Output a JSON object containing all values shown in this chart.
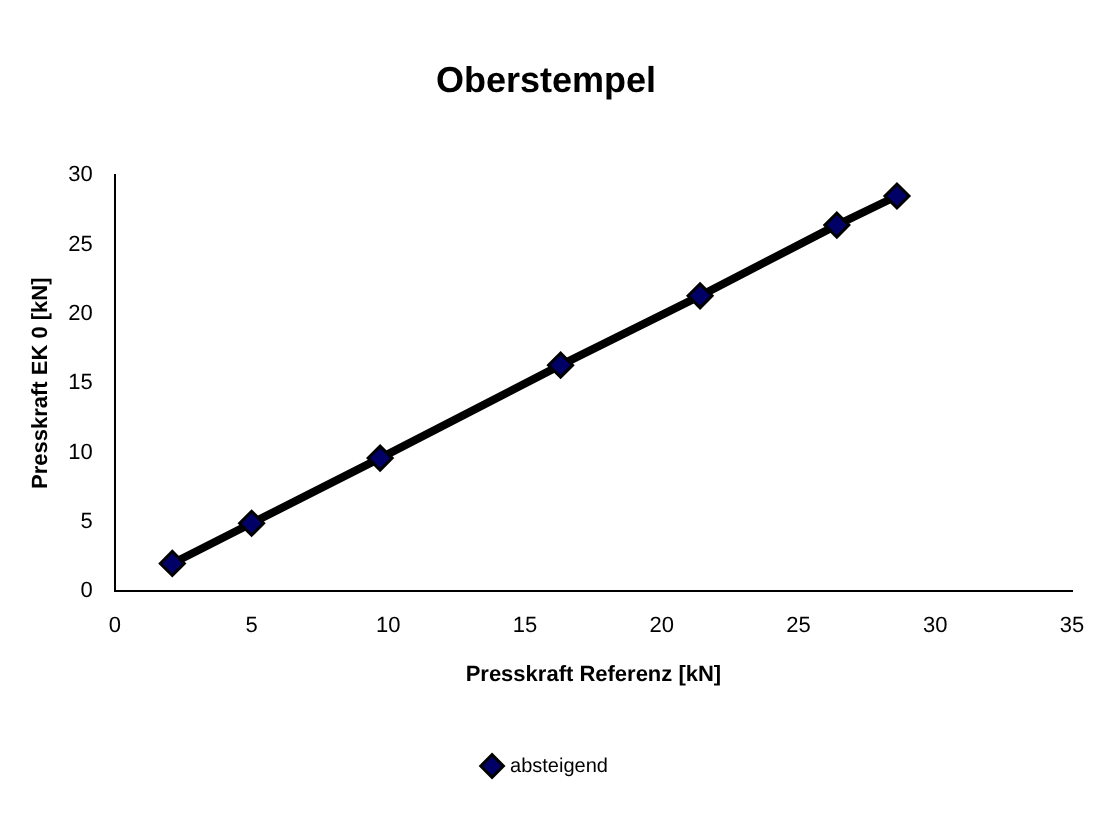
{
  "chart_data": {
    "type": "line",
    "title": "Oberstempel",
    "xlabel": "Presskraft Referenz [kN]",
    "ylabel": "Presskraft EK 0 [kN]",
    "x": [
      2.1,
      5.0,
      9.7,
      16.3,
      21.4,
      26.4,
      28.6
    ],
    "series": [
      {
        "name": "absteigend",
        "color": "#000000",
        "values": [
          2.0,
          4.9,
          9.6,
          16.3,
          21.3,
          26.4,
          28.5
        ]
      }
    ],
    "xlim": [
      0,
      35
    ],
    "xticks": [
      0,
      5,
      10,
      15,
      20,
      25,
      30,
      35
    ],
    "ylim": [
      0,
      30
    ],
    "yticks": [
      0,
      5,
      10,
      15,
      20,
      25,
      30
    ],
    "grid": false,
    "legend": "bottom",
    "marker": "diamond",
    "line_style": "solid"
  }
}
